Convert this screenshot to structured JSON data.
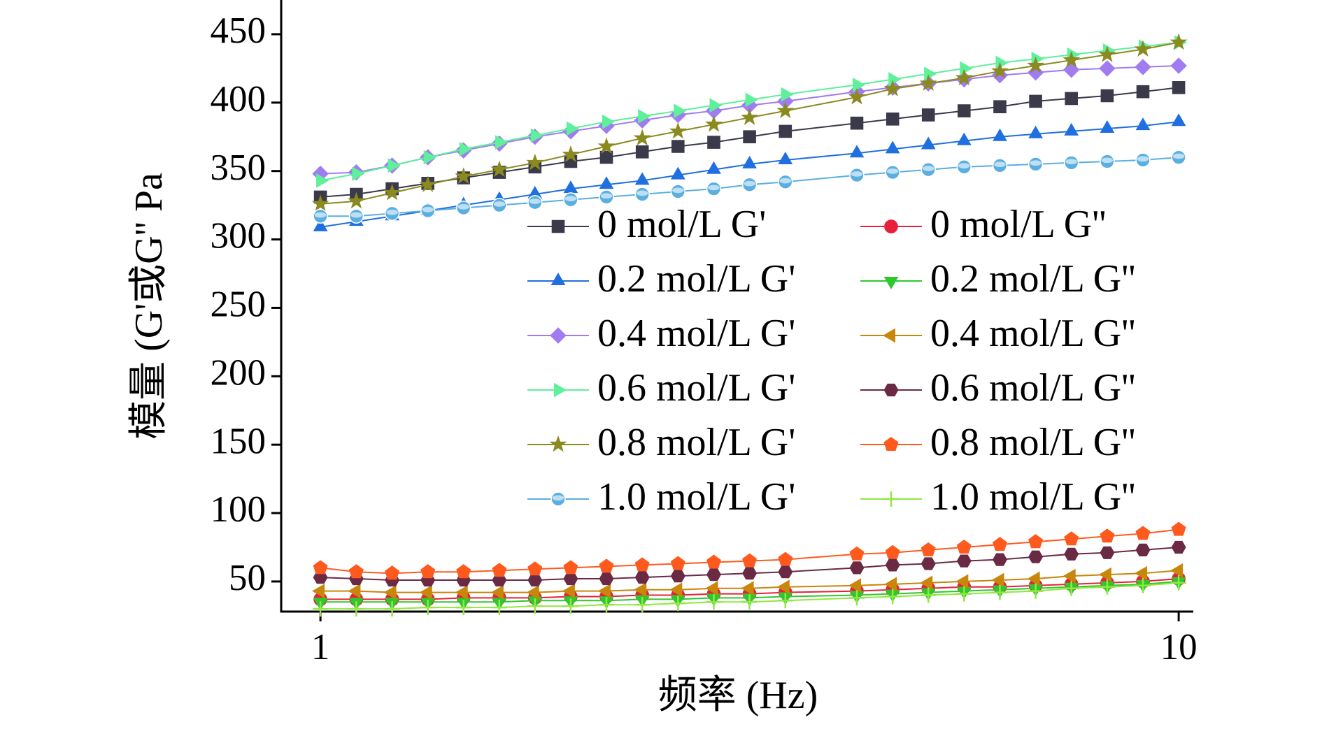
{
  "chart_data": {
    "type": "line",
    "x_label": "频率 (Hz)",
    "y_label": "模量 (G'或G'' Pa",
    "x_scale": "log",
    "xlim": [
      0.9,
      10.4
    ],
    "xticks": [
      1,
      10
    ],
    "ylim": [
      28,
      475
    ],
    "yticks": [
      50,
      100,
      150,
      200,
      250,
      300,
      350,
      400,
      450
    ],
    "legend": "center right",
    "x": [
      1,
      1.101,
      1.212,
      1.334,
      1.468,
      1.616,
      1.778,
      1.957,
      2.154,
      2.371,
      2.61,
      2.873,
      3.162,
      3.481,
      4.217,
      4.642,
      5.109,
      5.623,
      6.19,
      6.813,
      7.499,
      8.254,
      9.085,
      10
    ],
    "series": [
      {
        "name": "0 mol/L G'",
        "color": "#3a3a4a",
        "marker": "square",
        "values": [
          331,
          333,
          337,
          341,
          345,
          349,
          353,
          357,
          360,
          364,
          368,
          371,
          375,
          379,
          385,
          388,
          391,
          394,
          397,
          401,
          403,
          405,
          408,
          411
        ]
      },
      {
        "name": "0 mol/L G''",
        "color": "#e8203a",
        "marker": "circle",
        "values": [
          37,
          37,
          37,
          37,
          38,
          38,
          38,
          39,
          39,
          40,
          40,
          41,
          41,
          42,
          43,
          44,
          45,
          46,
          46,
          47,
          48,
          49,
          50,
          52
        ]
      },
      {
        "name": "0.2 mol/L G'",
        "color": "#1f6fe0",
        "marker": "triangle-up",
        "values": [
          309,
          313,
          317,
          321,
          325,
          329,
          333,
          337,
          340,
          343,
          347,
          351,
          355,
          358,
          363,
          366,
          369,
          372,
          375,
          377,
          379,
          381,
          383,
          386
        ]
      },
      {
        "name": "0.2 mol/L G''",
        "color": "#2ec82e",
        "marker": "triangle-down",
        "values": [
          35,
          35,
          35,
          35,
          35,
          35,
          36,
          36,
          36,
          37,
          37,
          38,
          38,
          39,
          40,
          41,
          42,
          43,
          44,
          45,
          46,
          47,
          48,
          50
        ]
      },
      {
        "name": "0.4 mol/L G'",
        "color": "#a07cf0",
        "marker": "diamond",
        "values": [
          348,
          349,
          354,
          360,
          365,
          370,
          375,
          379,
          383,
          387,
          391,
          394,
          398,
          401,
          408,
          411,
          414,
          417,
          420,
          422,
          424,
          425,
          426,
          427
        ]
      },
      {
        "name": "0.4 mol/L G''",
        "color": "#c8860a",
        "marker": "triangle-left",
        "values": [
          43,
          43,
          42,
          42,
          42,
          42,
          42,
          43,
          43,
          44,
          44,
          45,
          45,
          46,
          47,
          48,
          49,
          50,
          51,
          52,
          54,
          55,
          56,
          58
        ]
      },
      {
        "name": "0.6 mol/L G'",
        "color": "#5ef09a",
        "marker": "triangle-right",
        "values": [
          343,
          348,
          354,
          360,
          366,
          371,
          376,
          381,
          386,
          390,
          394,
          398,
          402,
          406,
          413,
          417,
          421,
          425,
          429,
          432,
          435,
          438,
          441,
          444
        ]
      },
      {
        "name": "0.6 mol/L G''",
        "color": "#6a2a44",
        "marker": "hexagon",
        "values": [
          53,
          52,
          51,
          51,
          51,
          51,
          51,
          52,
          52,
          53,
          54,
          55,
          56,
          57,
          60,
          62,
          63,
          65,
          66,
          68,
          70,
          71,
          73,
          75
        ]
      },
      {
        "name": "0.8 mol/L G'",
        "color": "#8a8a20",
        "marker": "star",
        "values": [
          326,
          328,
          334,
          340,
          346,
          351,
          356,
          362,
          368,
          374,
          379,
          384,
          389,
          394,
          404,
          410,
          414,
          418,
          423,
          427,
          431,
          435,
          439,
          444
        ]
      },
      {
        "name": "0.8 mol/L G''",
        "color": "#ff5a1e",
        "marker": "pentagon",
        "values": [
          60,
          57,
          56,
          57,
          57,
          58,
          59,
          60,
          61,
          62,
          63,
          64,
          65,
          66,
          70,
          71,
          73,
          75,
          77,
          79,
          81,
          83,
          85,
          88
        ]
      },
      {
        "name": "1.0 mol/L G'",
        "color": "#5aaee0",
        "marker": "sphere",
        "values": [
          317,
          317,
          319,
          321,
          323,
          325,
          327,
          329,
          331,
          333,
          335,
          337,
          340,
          342,
          347,
          349,
          351,
          353,
          354,
          355,
          356,
          357,
          358,
          360
        ]
      },
      {
        "name": "1.0 mol/L G''",
        "color": "#90e840",
        "marker": "plus",
        "values": [
          30,
          30,
          30,
          31,
          31,
          31,
          32,
          32,
          33,
          33,
          34,
          35,
          35,
          36,
          38,
          39,
          40,
          41,
          42,
          43,
          45,
          46,
          47,
          49
        ]
      }
    ]
  }
}
